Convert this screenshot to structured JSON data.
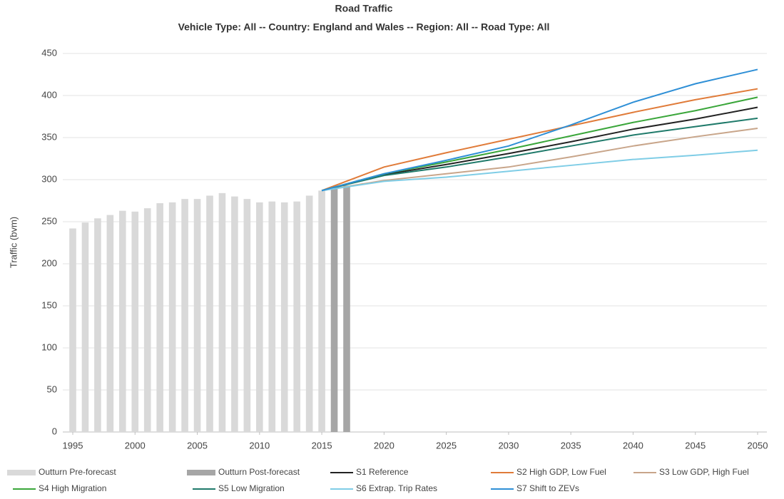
{
  "chart_data": {
    "type": "combo",
    "title": "Road Traffic",
    "subtitle": "Vehicle Type: All -- Country: England and Wales --  Region: All -- Road Type: All",
    "y_label": "Traffic (bvm)",
    "xlim": [
      1995,
      2050
    ],
    "xticks": [
      1995,
      2000,
      2005,
      2010,
      2015,
      2020,
      2025,
      2030,
      2035,
      2040,
      2045,
      2050
    ],
    "ylim": [
      0,
      450
    ],
    "yticks": [
      0,
      50,
      100,
      150,
      200,
      250,
      300,
      350,
      400,
      450
    ],
    "grid": true,
    "series": [
      {
        "name": "Outturn Pre-forecast",
        "type": "bar",
        "color": "#d9d9d9",
        "x": [
          1995,
          1996,
          1997,
          1998,
          1999,
          2000,
          2001,
          2002,
          2003,
          2004,
          2005,
          2006,
          2007,
          2008,
          2009,
          2010,
          2011,
          2012,
          2013,
          2014,
          2015
        ],
        "values": [
          242,
          249,
          254,
          258,
          263,
          262,
          266,
          272,
          273,
          277,
          277,
          281,
          284,
          280,
          277,
          273,
          274,
          273,
          274,
          281,
          287
        ]
      },
      {
        "name": "Outturn Post-forecast",
        "type": "bar",
        "color": "#a6a6a6",
        "x": [
          2016,
          2017
        ],
        "values": [
          291,
          293
        ]
      },
      {
        "name": "S1 Reference",
        "type": "line",
        "color": "#222222",
        "x": [
          2015,
          2020,
          2025,
          2030,
          2035,
          2040,
          2045,
          2050
        ],
        "values": [
          287,
          306,
          318,
          331,
          345,
          360,
          372,
          386
        ]
      },
      {
        "name": "S2 High GDP, Low Fuel",
        "type": "line",
        "color": "#e07b39",
        "x": [
          2015,
          2020,
          2025,
          2030,
          2035,
          2040,
          2045,
          2050
        ],
        "values": [
          287,
          315,
          332,
          348,
          364,
          380,
          395,
          408
        ]
      },
      {
        "name": "S3 Low GDP, High Fuel",
        "type": "line",
        "color": "#c8a58a",
        "x": [
          2015,
          2020,
          2025,
          2030,
          2035,
          2040,
          2045,
          2050
        ],
        "values": [
          287,
          299,
          307,
          315,
          327,
          340,
          351,
          361
        ]
      },
      {
        "name": "S4 High Migration",
        "type": "line",
        "color": "#3aa63a",
        "x": [
          2015,
          2020,
          2025,
          2030,
          2035,
          2040,
          2045,
          2050
        ],
        "values": [
          287,
          307,
          321,
          336,
          352,
          368,
          382,
          398
        ]
      },
      {
        "name": "S5 Low Migration",
        "type": "line",
        "color": "#1f7a6a",
        "x": [
          2015,
          2020,
          2025,
          2030,
          2035,
          2040,
          2045,
          2050
        ],
        "values": [
          287,
          305,
          315,
          327,
          340,
          353,
          363,
          373
        ]
      },
      {
        "name": "S6 Extrap. Trip Rates",
        "type": "line",
        "color": "#7fcde6",
        "x": [
          2015,
          2020,
          2025,
          2030,
          2035,
          2040,
          2045,
          2050
        ],
        "values": [
          287,
          298,
          303,
          310,
          317,
          324,
          329,
          335
        ]
      },
      {
        "name": "S7 Shift to ZEVs",
        "type": "line",
        "color": "#2e8fd6",
        "x": [
          2015,
          2020,
          2025,
          2030,
          2035,
          2040,
          2045,
          2050
        ],
        "values": [
          287,
          307,
          323,
          340,
          365,
          392,
          414,
          431
        ]
      }
    ]
  }
}
